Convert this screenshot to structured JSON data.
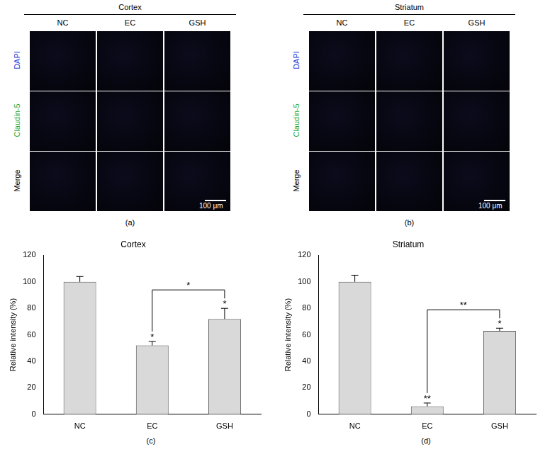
{
  "figure": {
    "panels": [
      {
        "label": "(a)",
        "region": "Cortex",
        "columns": [
          "NC",
          "EC",
          "GSH"
        ],
        "rows": [
          "DAPI",
          "Claudin-5",
          "Merge"
        ],
        "row_colors": [
          "#1f3fd6",
          "#1fa83a",
          "#000000"
        ],
        "scale_bar": "100 μm"
      },
      {
        "label": "(b)",
        "region": "Striatum",
        "columns": [
          "NC",
          "EC",
          "GSH"
        ],
        "rows": [
          "DAPI",
          "Claudin-5",
          "Merge"
        ],
        "row_colors": [
          "#1f3fd6",
          "#1fa83a",
          "#000000"
        ],
        "scale_bar": "100 μm"
      }
    ]
  },
  "chart_data": [
    {
      "type": "bar",
      "panel": "(c)",
      "title": "Cortex",
      "y_label": "Relative intensity (%)",
      "categories": [
        "NC",
        "EC",
        "GSH"
      ],
      "values": [
        100,
        52,
        72
      ],
      "errors": [
        4,
        3,
        8
      ],
      "color": "#d9d9d9",
      "ylim": [
        0,
        120
      ],
      "yticks": [
        0,
        20,
        40,
        60,
        80,
        100,
        120
      ],
      "grid": false,
      "significance": [
        null,
        "*",
        "*"
      ],
      "bracket": {
        "from": "EC",
        "to": "GSH",
        "label": "*"
      }
    },
    {
      "type": "bar",
      "panel": "(d)",
      "title": "Striatum",
      "y_label": "Relative intensity (%)",
      "categories": [
        "NC",
        "EC",
        "GSH"
      ],
      "values": [
        100,
        6,
        63
      ],
      "errors": [
        5,
        2.5,
        2
      ],
      "color": "#d9d9d9",
      "ylim": [
        0,
        120
      ],
      "yticks": [
        0,
        20,
        40,
        60,
        80,
        100,
        120
      ],
      "grid": false,
      "significance": [
        null,
        "**",
        "*"
      ],
      "bracket": {
        "from": "EC",
        "to": "GSH",
        "label": "**"
      }
    }
  ]
}
